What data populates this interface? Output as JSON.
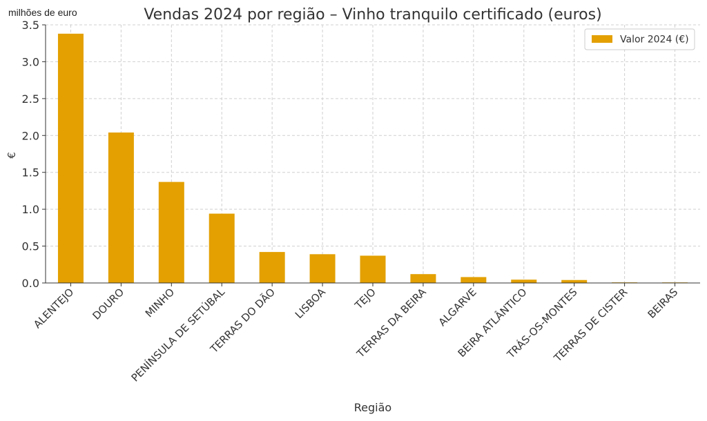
{
  "chart_data": {
    "type": "bar",
    "title": "Vendas 2024 por região – Vinho tranquilo certificado (euros)",
    "scale_note": "milhões de euro",
    "xlabel": "Região",
    "ylabel": "€",
    "ylim": [
      0,
      3.5
    ],
    "yticks": [
      "0.0",
      "0.5",
      "1.0",
      "1.5",
      "2.0",
      "2.5",
      "3.0",
      "3.5"
    ],
    "grid": true,
    "legend_position": "top-right",
    "categories": [
      "ALENTEJO",
      "DOURO",
      "MINHO",
      "PENÍNSULA DE SETÚBAL",
      "TERRAS DO DÃO",
      "LISBOA",
      "TEJO",
      "TERRAS DA BEIRA",
      "ALGARVE",
      "BEIRA ATLÂNTICO",
      "TRÁS-OS-MONTES",
      "TERRAS DE CISTER",
      "BEIRAS"
    ],
    "series": [
      {
        "name": "Valor 2024 (€)",
        "color": "#E3A000",
        "values": [
          3.38,
          2.04,
          1.37,
          0.94,
          0.42,
          0.39,
          0.37,
          0.12,
          0.08,
          0.045,
          0.04,
          0.008,
          0.004
        ]
      }
    ]
  }
}
